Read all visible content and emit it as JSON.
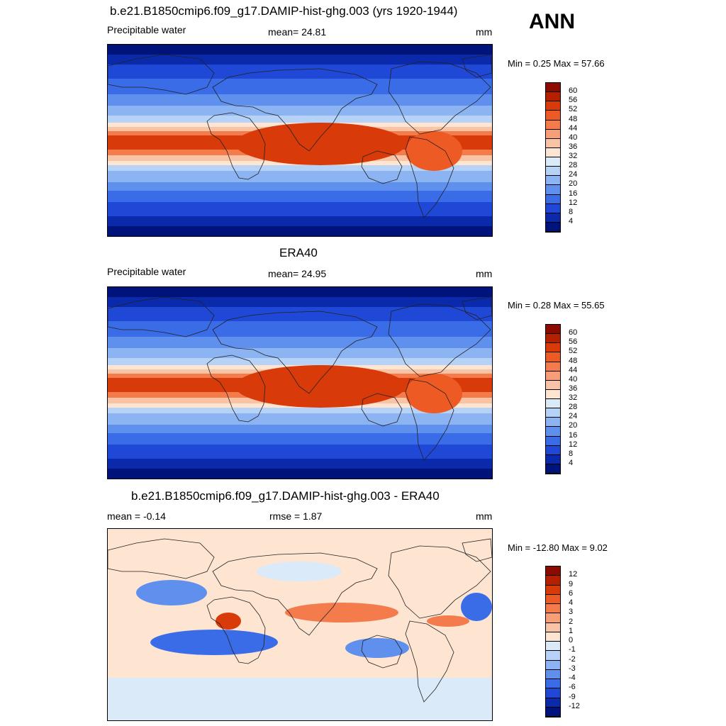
{
  "season": "ANN",
  "panels": [
    {
      "title": "b.e21.B1850cmip6.f09_g17.DAMIP-hist-ghg.003 (yrs 1920-1944)",
      "left_label": "Precipitable water",
      "center_label": "mean=  24.81",
      "units": "mm",
      "minmax": "Min =   0.25 Max =  57.66",
      "colorbar": {
        "labels": [
          "60",
          "56",
          "52",
          "48",
          "44",
          "40",
          "36",
          "32",
          "28",
          "24",
          "20",
          "16",
          "12",
          "8",
          "4"
        ],
        "colors": [
          "#8c0a00",
          "#b52000",
          "#d83a0a",
          "#ee5a24",
          "#f47c4c",
          "#f79e78",
          "#f9c3a6",
          "#fde5d2",
          "#dbeaf9",
          "#b6d2f6",
          "#8cb4f2",
          "#5f90ee",
          "#3a6ce8",
          "#1f48d6",
          "#0a2aab",
          "#00137a"
        ]
      },
      "map_style": "full"
    },
    {
      "title": "ERA40",
      "left_label": "Precipitable water",
      "center_label": "mean=  24.95",
      "units": "mm",
      "minmax": "Min =   0.28 Max =  55.65",
      "colorbar": {
        "labels": [
          "60",
          "56",
          "52",
          "48",
          "44",
          "40",
          "36",
          "32",
          "28",
          "24",
          "20",
          "16",
          "12",
          "8",
          "4"
        ],
        "colors": [
          "#8c0a00",
          "#b52000",
          "#d83a0a",
          "#ee5a24",
          "#f47c4c",
          "#f79e78",
          "#f9c3a6",
          "#fde5d2",
          "#dbeaf9",
          "#b6d2f6",
          "#8cb4f2",
          "#5f90ee",
          "#3a6ce8",
          "#1f48d6",
          "#0a2aab",
          "#00137a"
        ]
      },
      "map_style": "full"
    },
    {
      "title": "b.e21.B1850cmip6.f09_g17.DAMIP-hist-ghg.003 - ERA40",
      "left_label": "mean =  -0.14",
      "center_label": "rmse =   1.87",
      "units": "mm",
      "minmax": "Min = -12.80 Max =   9.02",
      "colorbar": {
        "labels": [
          "12",
          "9",
          "6",
          "4",
          "3",
          "2",
          "1",
          "0",
          "-1",
          "-2",
          "-3",
          "-4",
          "-6",
          "-9",
          "-12"
        ],
        "colors": [
          "#8c0a00",
          "#b52000",
          "#d83a0a",
          "#ee5a24",
          "#f47c4c",
          "#f79e78",
          "#f9c3a6",
          "#fde5d2",
          "#dbeaf9",
          "#b6d2f6",
          "#8cb4f2",
          "#5f90ee",
          "#3a6ce8",
          "#1f48d6",
          "#0a2aab",
          "#00137a"
        ]
      },
      "map_style": "diff"
    }
  ]
}
